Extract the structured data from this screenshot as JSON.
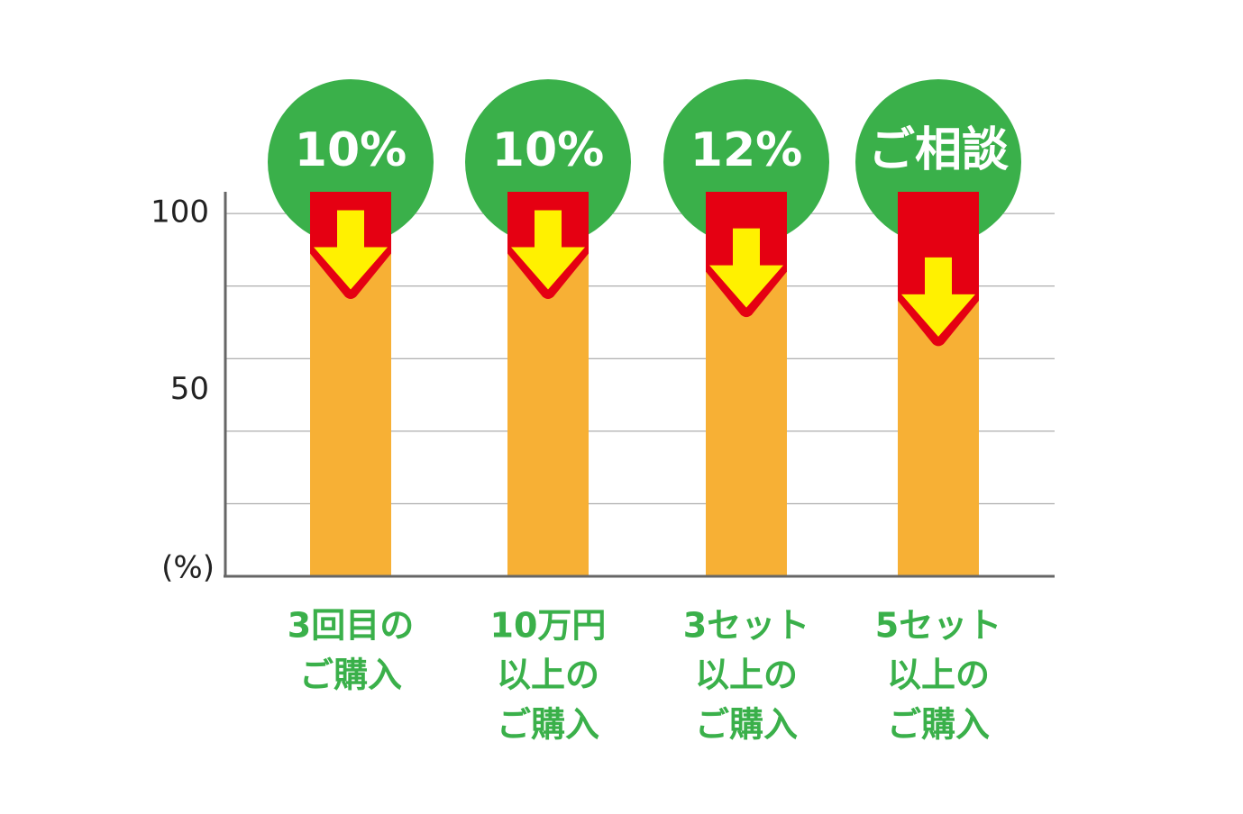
{
  "chart_data": {
    "type": "stacked_bar",
    "y_label": "(%)",
    "categories": [
      [
        "3回目の",
        "ご購入"
      ],
      [
        "10万円",
        "以上の",
        "ご購入"
      ],
      [
        "3セット",
        "以上の",
        "ご購入"
      ],
      [
        "5セット",
        "以上の",
        "ご購入"
      ]
    ],
    "badges": [
      "10%",
      "10%",
      "12%",
      "ご相談"
    ],
    "base": {
      "values": [
        90,
        90,
        85,
        77
      ],
      "color": "#f7b035"
    },
    "discount": {
      "values": [
        16,
        16,
        21,
        29
      ],
      "color": "#e50012"
    },
    "badge_color": "#3ab04a",
    "arrow_color": "#fff100",
    "ylim": [
      0,
      106
    ],
    "yticks": [
      50,
      100
    ],
    "grid_lines": [
      20,
      40,
      60,
      80,
      100
    ],
    "grid": true
  }
}
